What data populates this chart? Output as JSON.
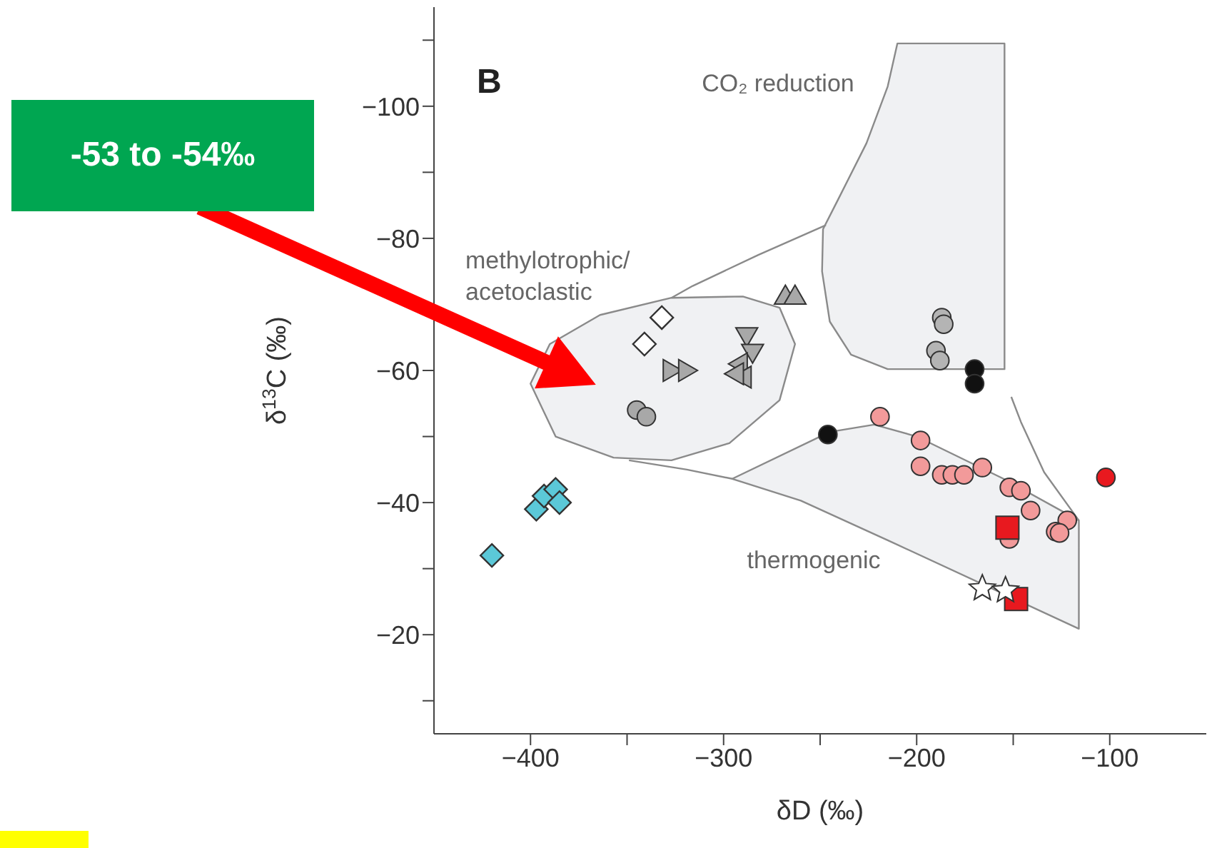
{
  "chart_data": {
    "type": "scatter",
    "xlabel": "δD (‰)",
    "ylabel": "δ$^{13}$C (‰)",
    "xlim": [
      -450,
      -50
    ],
    "ylim": [
      -5,
      -115
    ],
    "xticks": [
      -400,
      {
        "value": -350,
        "label": null
      },
      -300,
      {
        "value": -250,
        "label": null
      },
      -200,
      {
        "value": -150,
        "label": null
      },
      -100
    ],
    "yticks": [
      {
        "value": -110,
        "label": null
      },
      -100,
      {
        "value": -90,
        "label": null
      },
      -80,
      {
        "value": -70,
        "label": null
      },
      -60,
      {
        "value": -50,
        "label": null
      },
      -40,
      {
        "value": -30,
        "label": null
      },
      -20,
      {
        "value": -10,
        "label": null
      }
    ],
    "annotations": [
      "B",
      "CO₂ reduction",
      "methylotrophic/\nacetoclastic",
      "thermogenic",
      "-53 to -54‰"
    ],
    "series": [
      {
        "type": "area",
        "color": "#f0f1f3",
        "x": [
          -210,
          -215,
          -226,
          -241,
          -248.5,
          -249,
          -245,
          -234,
          -215,
          -154.5,
          -154.5
        ],
        "values": [
          -109.5,
          -103,
          -94.4,
          -85.7,
          -81.4,
          -75,
          -67.4,
          -62.4,
          -60.2,
          -60.2,
          -109.5
        ]
      },
      {
        "type": "area",
        "color": "#f0f1f3",
        "x": [
          -400,
          -390,
          -364,
          -327,
          -290,
          -271,
          -263,
          -271,
          -297,
          -327,
          -357,
          -387
        ],
        "values": [
          -58,
          -64,
          -68.4,
          -71,
          -71.2,
          -69.5,
          -64,
          -55.5,
          -49,
          -46.4,
          -46.8,
          -50
        ]
      },
      {
        "type": "area",
        "color": "#f0f1f3",
        "x": [
          -295.5,
          -245,
          -222,
          -200,
          -155,
          -116,
          -116,
          -215,
          -260
        ],
        "values": [
          -43.6,
          -50.7,
          -51.8,
          -50,
          -43.6,
          -37.3,
          -20.9,
          -34.3,
          -40.3
        ]
      },
      {
        "type": "line",
        "color": "#8a8a8a",
        "x": [
          -247,
          -282,
          -316,
          -327
        ],
        "values": [
          -82,
          -77.5,
          -72.8,
          -71
        ]
      },
      {
        "type": "line",
        "color": "#8a8a8a",
        "x": [
          -349,
          -319,
          -295.5
        ],
        "values": [
          -46.4,
          -45,
          -43.6
        ]
      },
      {
        "type": "line",
        "color": "#8a8a8a",
        "x": [
          -151,
          -146,
          -134,
          -116
        ],
        "values": [
          -56,
          -52.2,
          -44.6,
          -37.3
        ]
      },
      {
        "marker": "diamond",
        "color": "#5bc8d8",
        "x": [
          -420,
          -397,
          -393,
          -387,
          -385
        ],
        "values": [
          -32,
          -39,
          -41,
          -42,
          -40
        ]
      },
      {
        "marker": "circle",
        "color": "#a8a8a8",
        "x": [
          -345,
          -340
        ],
        "values": [
          -54,
          -53
        ]
      },
      {
        "marker": "diamond",
        "color": "#ffffff",
        "x": [
          -341,
          -332
        ],
        "values": [
          -64,
          -68
        ]
      },
      {
        "marker": "triangle-right",
        "color": "#a8a8a8",
        "x": [
          -328,
          -320
        ],
        "values": [
          -60,
          -60
        ]
      },
      {
        "marker": "triangle-down",
        "color": "#a8a8a8",
        "x": [
          -288,
          -285
        ],
        "values": [
          -65.5,
          -63
        ]
      },
      {
        "marker": "triangle-left",
        "color": "#a8a8a8",
        "x": [
          -291,
          -289,
          -293
        ],
        "values": [
          -61,
          -59,
          -59.5
        ]
      },
      {
        "marker": "triangle",
        "color": "#a8a8a8",
        "x": [
          -268,
          -263
        ],
        "values": [
          -71,
          -71
        ]
      },
      {
        "marker": "circle",
        "color": "#b4b4b4",
        "x": [
          -187,
          -186,
          -190,
          -188
        ],
        "values": [
          -68,
          -67,
          -63,
          -61.5
        ]
      },
      {
        "marker": "circle",
        "color": "#111111",
        "x": [
          -170,
          -170,
          -246
        ],
        "values": [
          -60.2,
          -58,
          -50.3
        ]
      },
      {
        "marker": "circle",
        "color": "#f29a9a",
        "x": [
          -219,
          -198,
          -198,
          -187,
          -181.5,
          -175.5,
          -166,
          -152,
          -146,
          -141,
          -122,
          -128,
          -126,
          -152
        ],
        "values": [
          -53,
          -49.4,
          -45.5,
          -44.2,
          -44.2,
          -44.2,
          -45.3,
          -42.3,
          -41.8,
          -38.8,
          -37.3,
          -35.6,
          -35.4,
          -34.5
        ]
      },
      {
        "marker": "square",
        "color": "#e8191f",
        "x": [
          -153,
          -148.5
        ],
        "values": [
          -36.2,
          -25.4
        ]
      },
      {
        "marker": "star",
        "color": "#ffffff",
        "x": [
          -166,
          -154
        ],
        "values": [
          -27,
          -26.7
        ]
      },
      {
        "marker": "circle",
        "color": "#e8191f",
        "x": [
          -102
        ],
        "values": [
          -43.8
        ]
      }
    ]
  }
}
